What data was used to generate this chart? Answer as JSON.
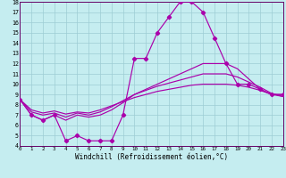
{
  "bg_color": "#c5edf0",
  "grid_color": "#9dcdd4",
  "line_color": "#aa00aa",
  "xlabel": "Windchill (Refroidissement éolien,°C)",
  "xlim": [
    0,
    23
  ],
  "ylim": [
    4,
    18
  ],
  "xticks": [
    0,
    1,
    2,
    3,
    4,
    5,
    6,
    7,
    8,
    9,
    10,
    11,
    12,
    13,
    14,
    15,
    16,
    17,
    18,
    19,
    20,
    21,
    22,
    23
  ],
  "yticks": [
    4,
    5,
    6,
    7,
    8,
    9,
    10,
    11,
    12,
    13,
    14,
    15,
    16,
    17,
    18
  ],
  "line1_x": [
    0,
    1,
    2,
    3,
    4,
    5,
    6,
    7,
    8,
    9,
    10,
    11,
    12,
    13,
    14,
    15,
    16,
    17,
    18,
    19,
    20,
    21,
    22,
    23
  ],
  "line1_y": [
    8.5,
    7.0,
    6.5,
    7.0,
    4.5,
    5.0,
    4.5,
    4.5,
    4.5,
    7.0,
    12.5,
    12.5,
    15.0,
    16.5,
    18.0,
    18.0,
    17.0,
    14.5,
    12.0,
    10.0,
    10.0,
    9.5,
    9.0,
    9.0
  ],
  "line2_x": [
    0,
    1,
    2,
    3,
    4,
    5,
    6,
    7,
    8,
    9,
    10,
    11,
    12,
    13,
    14,
    15,
    16,
    17,
    18,
    19,
    20,
    21,
    22,
    23
  ],
  "line2_y": [
    8.5,
    7.0,
    6.5,
    7.0,
    6.5,
    7.0,
    6.8,
    7.0,
    7.5,
    8.2,
    9.0,
    9.5,
    10.0,
    10.5,
    11.0,
    11.5,
    12.0,
    12.0,
    12.0,
    11.5,
    10.5,
    9.5,
    9.0,
    9.0
  ],
  "line3_x": [
    0,
    1,
    2,
    3,
    4,
    5,
    6,
    7,
    8,
    9,
    10,
    11,
    12,
    13,
    14,
    15,
    16,
    17,
    18,
    19,
    20,
    21,
    22,
    23
  ],
  "line3_y": [
    8.5,
    7.3,
    7.0,
    7.2,
    6.8,
    7.2,
    7.0,
    7.3,
    7.8,
    8.4,
    9.0,
    9.4,
    9.8,
    10.1,
    10.4,
    10.7,
    11.0,
    11.0,
    11.0,
    10.7,
    10.2,
    9.7,
    9.1,
    8.8
  ],
  "line4_x": [
    0,
    1,
    2,
    3,
    4,
    5,
    6,
    7,
    8,
    9,
    10,
    11,
    12,
    13,
    14,
    15,
    16,
    17,
    18,
    19,
    20,
    21,
    22,
    23
  ],
  "line4_y": [
    8.5,
    7.5,
    7.2,
    7.4,
    7.1,
    7.3,
    7.2,
    7.5,
    7.9,
    8.3,
    8.7,
    9.0,
    9.3,
    9.5,
    9.7,
    9.9,
    10.0,
    10.0,
    10.0,
    9.9,
    9.7,
    9.4,
    9.0,
    8.8
  ]
}
